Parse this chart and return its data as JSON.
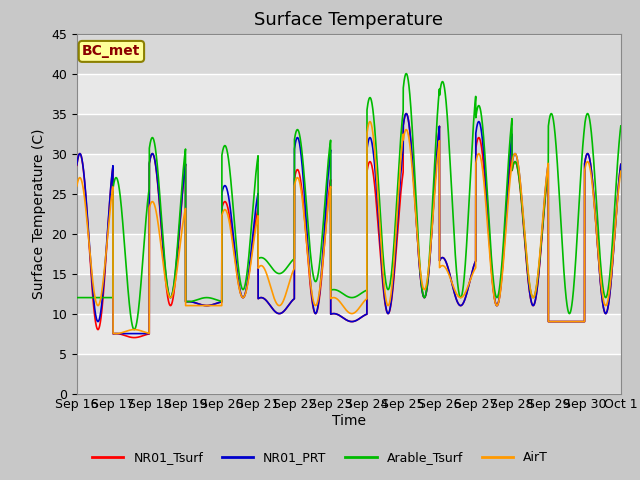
{
  "title": "Surface Temperature",
  "ylabel": "Surface Temperature (C)",
  "xlabel": "Time",
  "annotation_text": "BC_met",
  "annotation_bg": "#ffff99",
  "annotation_border": "#8B8000",
  "annotation_text_color": "#8B0000",
  "xlim_start": 0,
  "xlim_end": 360,
  "ylim": [
    0,
    45
  ],
  "yticks": [
    0,
    5,
    10,
    15,
    20,
    25,
    30,
    35,
    40,
    45
  ],
  "xtick_labels": [
    "Sep 16",
    "Sep 17",
    "Sep 18",
    "Sep 19",
    "Sep 20",
    "Sep 21",
    "Sep 22",
    "Sep 23",
    "Sep 24",
    "Sep 25",
    "Sep 26",
    "Sep 27",
    "Sep 28",
    "Sep 29",
    "Sep 30",
    "Oct 1"
  ],
  "xtick_positions": [
    0,
    24,
    48,
    72,
    96,
    120,
    144,
    168,
    192,
    216,
    240,
    264,
    288,
    312,
    336,
    360
  ],
  "legend_entries": [
    "NR01_Tsurf",
    "NR01_PRT",
    "Arable_Tsurf",
    "AirT"
  ],
  "line_colors": [
    "#ff0000",
    "#0000cc",
    "#00bb00",
    "#ff9900"
  ],
  "fig_bg": "#c8c8c8",
  "plot_bg": "#e8e8e8",
  "stripe_colors": [
    "#d8d8d8",
    "#e8e8e8"
  ],
  "grid_color": "#ffffff",
  "title_fontsize": 13,
  "label_fontsize": 10,
  "tick_fontsize": 9
}
